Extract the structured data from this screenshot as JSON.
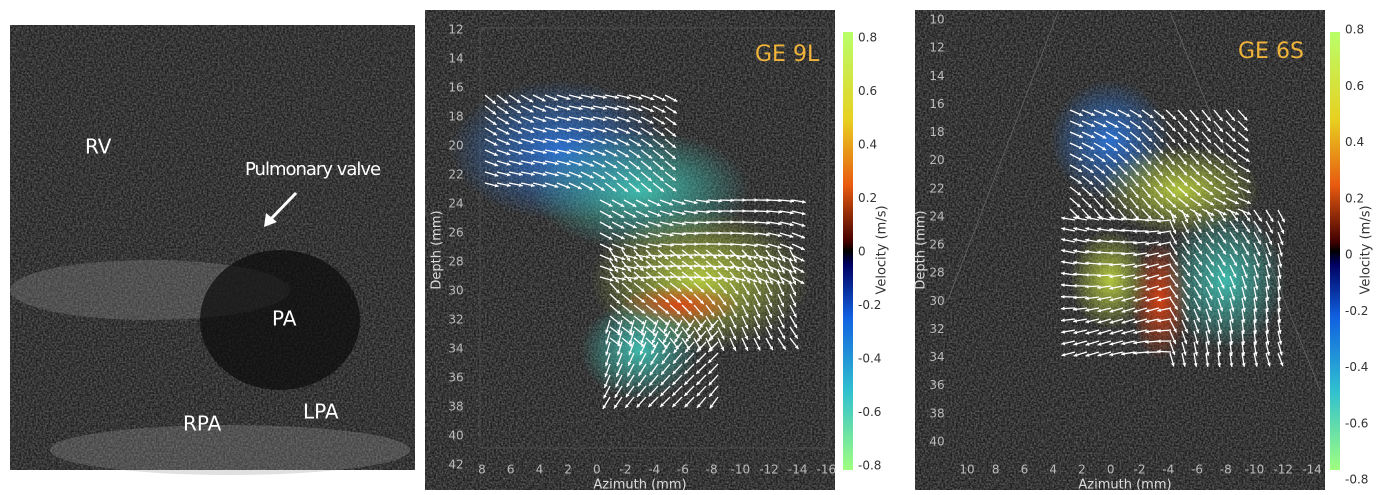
{
  "panels": [
    {
      "labels": [
        "RV",
        "Pulmonary valve",
        "PA",
        "RPA",
        "LPA"
      ]
    },
    {
      "title": "GE 9L",
      "y_axis": "Depth (mm)",
      "x_axis": "Azimuth (mm)",
      "colorbar_label": "Velocity (m/s)",
      "depth_ticks": [
        12,
        14,
        16,
        18,
        20,
        22,
        24,
        26,
        28,
        30,
        32,
        34,
        36,
        38,
        40,
        42
      ],
      "azimuth_ticks": [
        8,
        6,
        4,
        2,
        0,
        -2,
        -4,
        -6,
        -8,
        -10,
        -12,
        -14,
        -16
      ],
      "velocity_ticks": [
        0.8,
        0.6,
        0.4,
        0.2,
        0,
        -0.2,
        -0.4,
        -0.6,
        -0.8
      ]
    },
    {
      "title": "GE 6S",
      "y_axis": "Depth (mm)",
      "x_axis": "Azimuth (mm)",
      "colorbar_label": "Velocity (m/s)",
      "depth_ticks": [
        10,
        12,
        14,
        16,
        18,
        20,
        22,
        24,
        26,
        28,
        30,
        32,
        34,
        36,
        38,
        40
      ],
      "azimuth_ticks": [
        10,
        8,
        6,
        4,
        2,
        0,
        -2,
        -4,
        -6,
        -8,
        -10,
        -12,
        -14
      ],
      "velocity_ticks": [
        0.8,
        0.6,
        0.4,
        0.2,
        0,
        -0.2,
        -0.4,
        -0.6,
        -0.8
      ]
    }
  ]
}
